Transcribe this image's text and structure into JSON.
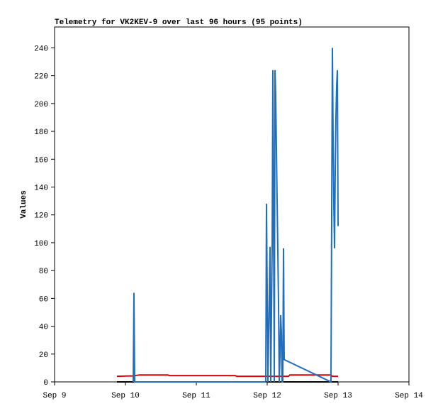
{
  "chart_data": {
    "type": "line",
    "title": "Telemetry for VK2KEV-9 over last 96 hours (95 points)",
    "ylabel": "Values",
    "xlim": [
      9,
      14
    ],
    "xticks": [
      {
        "value": 9,
        "label": "Sep 9"
      },
      {
        "value": 10,
        "label": "Sep 10"
      },
      {
        "value": 11,
        "label": "Sep 11"
      },
      {
        "value": 12,
        "label": "Sep 12"
      },
      {
        "value": 13,
        "label": "Sep 13"
      },
      {
        "value": 14,
        "label": "Sep 14"
      }
    ],
    "ylim": [
      0,
      255
    ],
    "yticks": [
      0,
      20,
      40,
      60,
      80,
      100,
      120,
      140,
      160,
      180,
      200,
      220,
      240
    ],
    "series": [
      {
        "color": "#000000",
        "x": [
          9.88,
          13.0
        ],
        "values": [
          0,
          0
        ]
      },
      {
        "color": "#e00000",
        "x": [
          9.88,
          10.05,
          10.1,
          10.2,
          10.6,
          10.62,
          11.55,
          11.57,
          12.3,
          12.32,
          12.9,
          12.92,
          13.0
        ],
        "values": [
          4,
          4.3,
          4.3,
          5,
          5,
          4.5,
          4.5,
          4,
          4,
          5,
          5,
          4,
          4
        ]
      },
      {
        "color": "#1f6fc0",
        "x": [
          10.11,
          10.12,
          10.13,
          11.98,
          11.99,
          12.0,
          12.01,
          12.04,
          12.05,
          12.07,
          12.08,
          12.09,
          12.1,
          12.11,
          12.12,
          12.13,
          12.14,
          12.15,
          12.16,
          12.17,
          12.18,
          12.19,
          12.2,
          12.21,
          12.22,
          12.23,
          12.24,
          12.9,
          12.91,
          12.92,
          12.93,
          12.94,
          12.95,
          12.96,
          12.97,
          12.98,
          12.99,
          13.0
        ],
        "values": [
          0,
          64,
          0,
          0,
          128,
          64,
          0,
          97,
          0,
          97,
          224,
          112,
          0,
          224,
          206,
          168,
          131,
          94,
          56,
          0,
          18,
          48,
          36,
          0,
          0,
          96,
          16,
          0,
          120,
          240,
          176,
          128,
          96,
          152,
          190,
          213,
          224,
          112
        ]
      }
    ]
  }
}
